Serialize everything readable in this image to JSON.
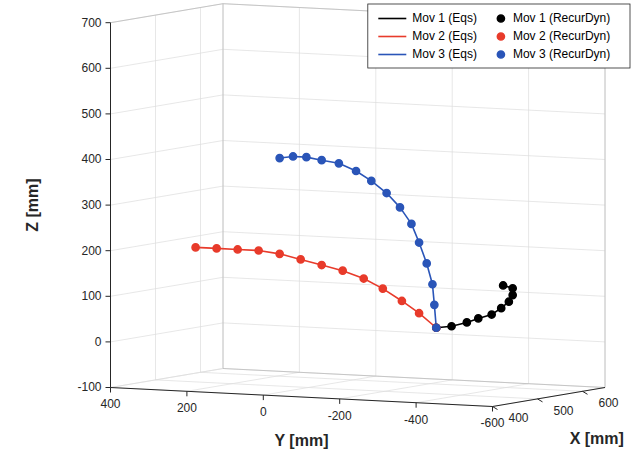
{
  "chart_data": {
    "type": "line",
    "x_label": "X [mm]",
    "y_label": "Y [mm]",
    "z_label": "Z [mm]",
    "xlim": [
      400,
      650
    ],
    "xticks": [
      400,
      500,
      600
    ],
    "ylim": [
      -600,
      400
    ],
    "yticks": [
      400,
      200,
      0,
      -200,
      -400,
      -600
    ],
    "zlim": [
      -100,
      700
    ],
    "zticks": [
      -100,
      0,
      100,
      200,
      300,
      400,
      500,
      600,
      700
    ],
    "grid": true,
    "legend": "northeast",
    "series": [
      {
        "name": "Mov 1 (Eqs)",
        "type": "line",
        "line_style": "solid",
        "color": "#000000",
        "x": [
          500,
          500,
          500,
          500,
          500,
          500,
          500,
          500,
          500,
          500
        ],
        "y": [
          -335,
          -375,
          -415,
          -445,
          -480,
          -505,
          -525,
          -535,
          -535,
          -510
        ],
        "z": [
          45,
          50,
          60,
          70,
          80,
          95,
          110,
          125,
          140,
          145
        ]
      },
      {
        "name": "Mov 2 (Eqs)",
        "type": "line",
        "line_style": "solid",
        "color": "#e83b2b",
        "x": [
          500,
          500,
          500,
          500,
          500,
          500,
          500,
          500,
          500,
          500,
          500,
          500,
          500
        ],
        "y": [
          -335,
          -290,
          -245,
          -195,
          -145,
          -90,
          -35,
          20,
          75,
          130,
          185,
          240,
          295
        ],
        "z": [
          45,
          75,
          100,
          125,
          145,
          160,
          170,
          180,
          190,
          195,
          195,
          195,
          195
        ]
      },
      {
        "name": "Mov 3 (Eqs)",
        "type": "line",
        "line_style": "solid",
        "color": "#2a55b8",
        "x": [
          500,
          500,
          500,
          500,
          500,
          500,
          500,
          500,
          500,
          500,
          500,
          500,
          500,
          500,
          500
        ],
        "y": [
          -335,
          -330,
          -325,
          -310,
          -290,
          -270,
          -240,
          -205,
          -165,
          -125,
          -80,
          -35,
          5,
          40,
          75
        ],
        "z": [
          45,
          95,
          140,
          185,
          230,
          270,
          305,
          335,
          360,
          380,
          395,
          400,
          405,
          405,
          400
        ]
      },
      {
        "name": "Mov 1 (RecurDyn)",
        "type": "scatter",
        "marker": "circle",
        "color": "#000000",
        "x": [
          500,
          500,
          500,
          500,
          500,
          500,
          500,
          500,
          500,
          500
        ],
        "y": [
          -335,
          -375,
          -415,
          -445,
          -480,
          -505,
          -525,
          -535,
          -535,
          -510
        ],
        "z": [
          45,
          50,
          60,
          70,
          80,
          95,
          110,
          125,
          140,
          145
        ]
      },
      {
        "name": "Mov 2 (RecurDyn)",
        "type": "scatter",
        "marker": "circle",
        "color": "#e83b2b",
        "x": [
          500,
          500,
          500,
          500,
          500,
          500,
          500,
          500,
          500,
          500,
          500,
          500,
          500
        ],
        "y": [
          -335,
          -290,
          -245,
          -195,
          -145,
          -90,
          -35,
          20,
          75,
          130,
          185,
          240,
          295
        ],
        "z": [
          45,
          75,
          100,
          125,
          145,
          160,
          170,
          180,
          190,
          195,
          195,
          195,
          195
        ]
      },
      {
        "name": "Mov 3 (RecurDyn)",
        "type": "scatter",
        "marker": "circle",
        "color": "#2a55b8",
        "x": [
          500,
          500,
          500,
          500,
          500,
          500,
          500,
          500,
          500,
          500,
          500,
          500,
          500,
          500,
          500
        ],
        "y": [
          -335,
          -330,
          -325,
          -310,
          -290,
          -270,
          -240,
          -205,
          -165,
          -125,
          -80,
          -35,
          5,
          40,
          75
        ],
        "z": [
          45,
          95,
          140,
          185,
          230,
          270,
          305,
          335,
          360,
          380,
          395,
          400,
          405,
          405,
          400
        ]
      }
    ]
  }
}
